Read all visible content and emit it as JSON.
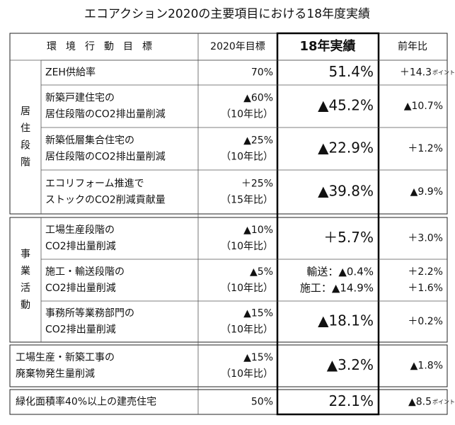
{
  "header": {
    "title": "エコアクション2020の主要項目における18年度実績"
  },
  "table": {
    "columns": [
      "環境行動目標",
      "2020年目標",
      "18年実績",
      "前年比"
    ],
    "groups": [
      {
        "label": "居住段階",
        "rows": [
          {
            "item": [
              "ZEH供給率"
            ],
            "target": [
              "70%"
            ],
            "result": [
              "51.4%"
            ],
            "change": [
              "＋14.3"
            ],
            "change_unit": "ポイント"
          },
          {
            "item": [
              "新築戸建住宅の",
              "居住段階のCO2排出量削減"
            ],
            "target": [
              "▲60%",
              "（10年比）"
            ],
            "result": [
              "▲45.2%"
            ],
            "change": [
              "▲10.7%"
            ]
          },
          {
            "item": [
              "新築低層集合住宅の",
              "居住段階のCO2排出量削減"
            ],
            "target": [
              "▲25%",
              "（10年比）"
            ],
            "result": [
              "▲22.9%"
            ],
            "change": [
              "＋1.2%"
            ]
          },
          {
            "item": [
              "エコリフォーム推進で",
              "ストックのCO2削減貢献量"
            ],
            "target": [
              "＋25%",
              "（15年比）"
            ],
            "result": [
              "▲39.8%"
            ],
            "change": [
              "▲9.9%"
            ]
          }
        ]
      },
      {
        "label": "事業活動",
        "rows": [
          {
            "item": [
              "工場生産段階の",
              "CO2排出量削減"
            ],
            "target": [
              "▲10%",
              "（10年比）"
            ],
            "result": [
              "＋5.7%"
            ],
            "change": [
              "＋3.0%"
            ]
          },
          {
            "item": [
              "施工・輸送段階の",
              "CO2排出量削減"
            ],
            "target": [
              "▲5%",
              "（10年比）"
            ],
            "result": [
              "輸送：▲0.4%",
              "施工：▲14.9%"
            ],
            "change": [
              "＋2.2%",
              "＋1.6%"
            ]
          },
          {
            "item": [
              "事務所等業務部門の",
              "CO2排出量削減"
            ],
            "target": [
              "▲15%",
              "（10年比）"
            ],
            "result": [
              "▲18.1%"
            ],
            "change": [
              "＋0.2%"
            ]
          }
        ]
      }
    ],
    "other_rows": [
      {
        "item": [
          "工場生産・新築工事の",
          "廃棄物発生量削減"
        ],
        "target": [
          "▲15%",
          "（10年比）"
        ],
        "result": [
          "▲3.2%"
        ],
        "change": [
          "▲1.8%"
        ]
      },
      {
        "item": [
          "緑化面積率40%以上の建売住宅"
        ],
        "target": [
          "50%"
        ],
        "result": [
          "22.1%"
        ],
        "change": [
          "▲8.5"
        ],
        "change_unit": "ポイント"
      }
    ]
  }
}
